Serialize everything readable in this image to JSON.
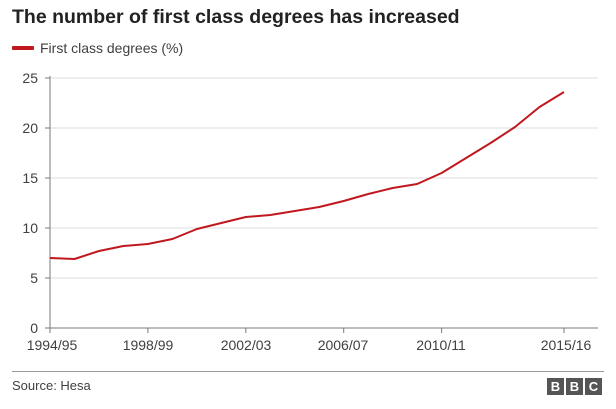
{
  "chart_data": {
    "type": "line",
    "title": "The number of first class degrees has increased",
    "xlabel": "",
    "ylabel": "",
    "ylim": [
      0,
      25
    ],
    "y_ticks": [
      0,
      5,
      10,
      15,
      20,
      25
    ],
    "x_tick_labels": [
      "1994/95",
      "1998/99",
      "2002/03",
      "2006/07",
      "2010/11",
      "2015/16"
    ],
    "categories": [
      "1994/95",
      "1995/96",
      "1996/97",
      "1997/98",
      "1998/99",
      "1999/00",
      "2000/01",
      "2001/02",
      "2002/03",
      "2003/04",
      "2004/05",
      "2005/06",
      "2006/07",
      "2007/08",
      "2008/09",
      "2009/10",
      "2010/11",
      "2011/12",
      "2012/13",
      "2013/14",
      "2014/15",
      "2015/16"
    ],
    "grid": true,
    "legend_position": "top-left",
    "series": [
      {
        "name": "First class degrees (%)",
        "color": "#c0181e",
        "values": [
          7.0,
          6.9,
          7.7,
          8.2,
          8.4,
          8.9,
          9.9,
          10.5,
          11.1,
          11.3,
          11.7,
          12.1,
          12.7,
          13.4,
          14.0,
          14.4,
          15.5,
          17.0,
          18.5,
          20.1,
          22.1,
          23.6
        ]
      }
    ]
  },
  "footer": {
    "source": "Source: Hesa",
    "logo_letters": [
      "B",
      "B",
      "C"
    ]
  }
}
